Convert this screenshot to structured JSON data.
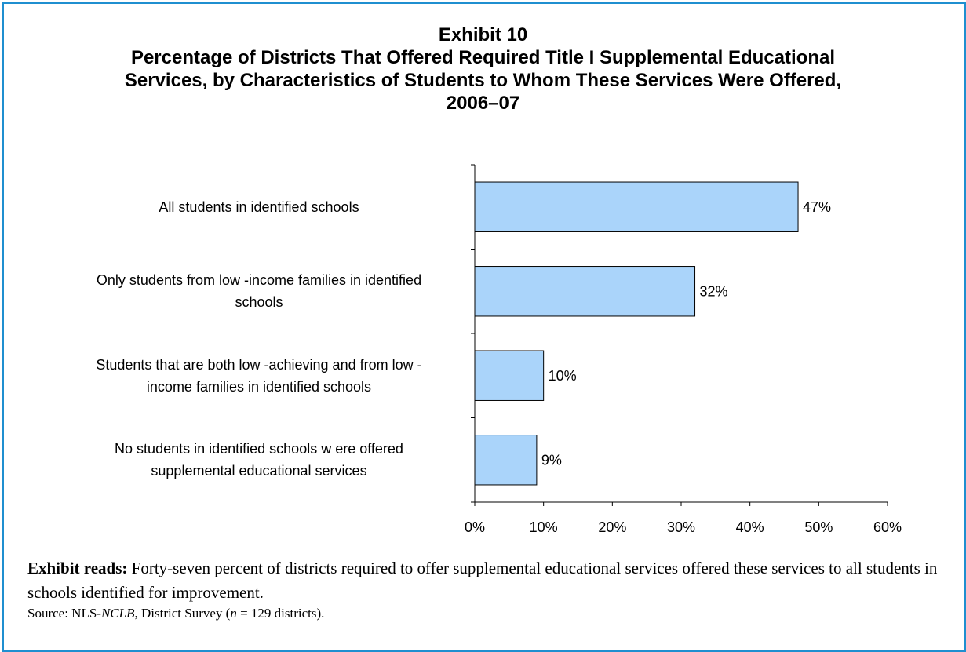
{
  "exhibit_label": "Exhibit 10",
  "title_line1": "Percentage of Districts That Offered Required Title I Supplemental Educational",
  "title_line2": "Services, by Characteristics of Students to Whom These Services Were Offered,",
  "title_line3": "2006–07",
  "chart_data": {
    "type": "bar",
    "orientation": "horizontal",
    "categories": [
      "All students in identified schools",
      "Only students from low-income families in identified schools",
      "Students that are both low-achieving and from low-income families in identified schools",
      "No students in identified schools were offered supplemental educational services"
    ],
    "category_lines": [
      [
        "All students in identified schools"
      ],
      [
        "Only students from low -income families in identified",
        "schools"
      ],
      [
        "Students that are both low -achieving and from low -",
        "income families in identified schools"
      ],
      [
        "No students in identified schools w ere offered",
        "supplemental educational services"
      ]
    ],
    "values": [
      47,
      32,
      10,
      9
    ],
    "data_labels": [
      "47%",
      "32%",
      "10%",
      "9%"
    ],
    "xlim": [
      0,
      60
    ],
    "x_ticks": [
      0,
      10,
      20,
      30,
      40,
      50,
      60
    ],
    "x_tick_labels": [
      "0%",
      "10%",
      "20%",
      "30%",
      "40%",
      "50%",
      "60%"
    ],
    "bar_color": "#aad4fa",
    "bar_edge_color": "#000000",
    "grid": false
  },
  "reads": {
    "lead": "Exhibit reads:",
    "text": " Forty-seven percent of districts required to offer supplemental educational services offered these services to all students in schools identified for improvement."
  },
  "source": {
    "prefix": "Source: NLS-",
    "italic": "NCLB",
    "middle": ", District Survey (",
    "n_italic": "n",
    "suffix": " = 129 districts)."
  },
  "colors": {
    "frame_border": "#1f8fd0"
  }
}
